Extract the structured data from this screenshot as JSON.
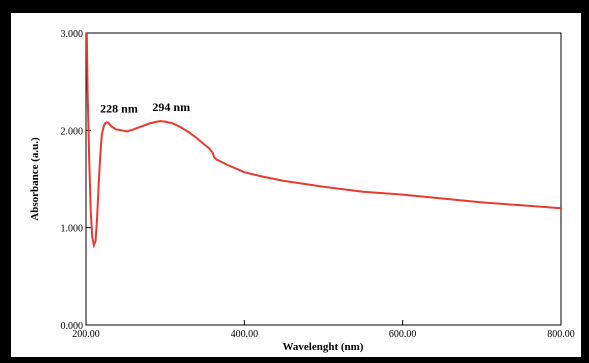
{
  "chart_data": {
    "type": "line",
    "xlabel": "Wavelenght (nm)",
    "ylabel": "Absorbance (a.u.)",
    "xlim": [
      200,
      800
    ],
    "ylim": [
      0,
      3
    ],
    "x_ticks": [
      200,
      400,
      600,
      800
    ],
    "x_tick_labels": [
      "200.00",
      "400.00",
      "600.00",
      "800.00"
    ],
    "y_ticks": [
      0,
      1,
      2,
      3
    ],
    "y_tick_labels": [
      "0.000",
      "1.000",
      "2.000",
      "3.000"
    ],
    "grid": false,
    "legend": "none",
    "line_color": "#e83a2e",
    "series": [
      {
        "x": [
          201,
          202,
          204,
          206,
          208,
          210,
          212,
          214,
          216,
          218,
          220,
          222,
          224,
          226,
          228,
          232,
          238,
          245,
          252,
          260,
          270,
          280,
          290,
          294,
          300,
          310,
          320,
          330,
          340,
          350,
          355,
          360,
          362,
          365,
          370,
          380,
          400,
          420,
          450,
          500,
          550,
          600,
          650,
          700,
          750,
          800
        ],
        "y": [
          3.0,
          2.4,
          1.7,
          1.15,
          0.9,
          0.82,
          0.86,
          1.1,
          1.45,
          1.75,
          1.95,
          2.03,
          2.07,
          2.08,
          2.08,
          2.04,
          2.01,
          2.0,
          1.99,
          2.01,
          2.04,
          2.07,
          2.09,
          2.095,
          2.09,
          2.07,
          2.03,
          1.98,
          1.92,
          1.85,
          1.82,
          1.77,
          1.72,
          1.7,
          1.68,
          1.64,
          1.57,
          1.53,
          1.48,
          1.42,
          1.37,
          1.34,
          1.3,
          1.26,
          1.23,
          1.2
        ]
      }
    ],
    "annotations": [
      {
        "text": "228 nm",
        "x": 228,
        "y": 2.08
      },
      {
        "text": "294 nm",
        "x": 294,
        "y": 2.095
      }
    ]
  }
}
